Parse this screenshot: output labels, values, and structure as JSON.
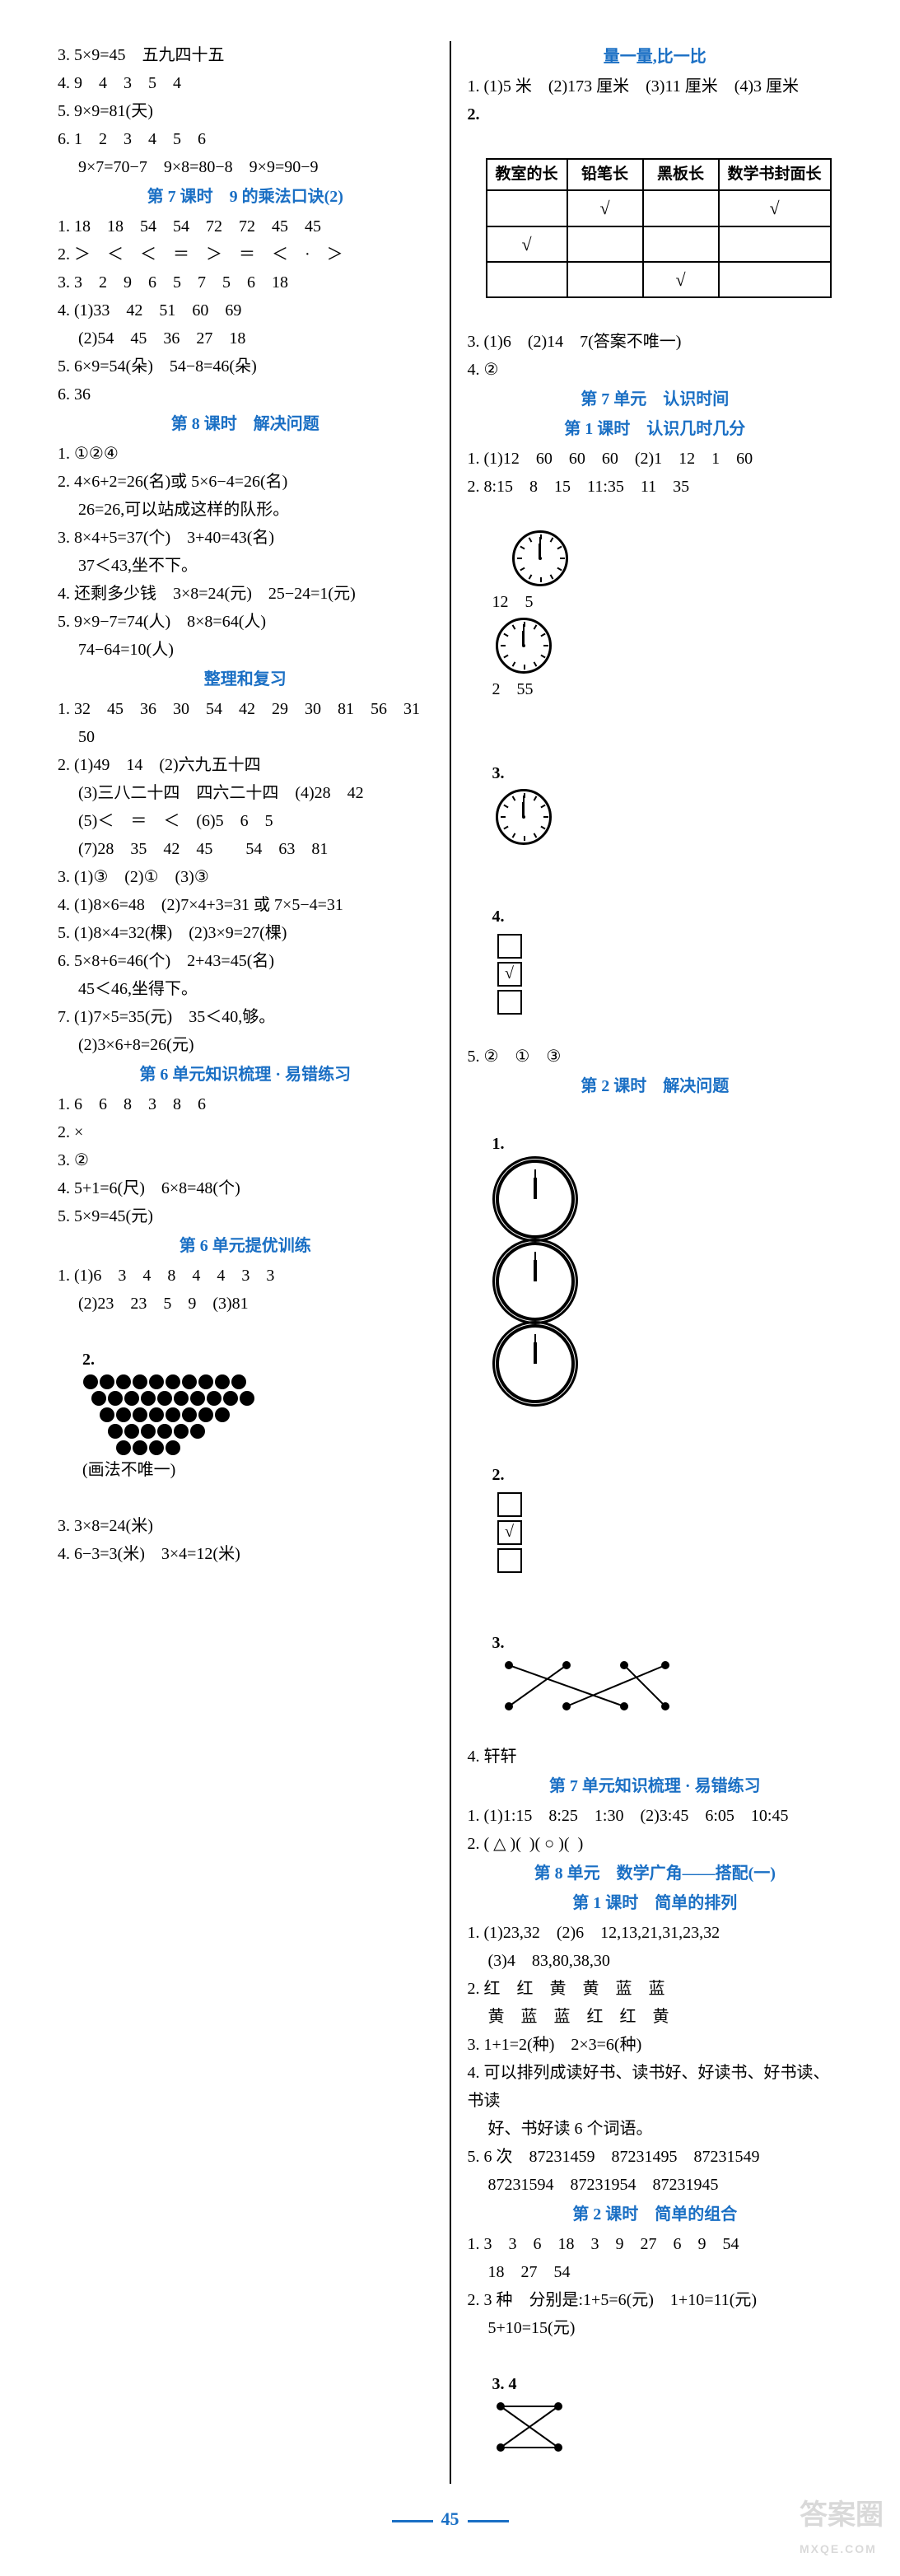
{
  "left": {
    "l3": "3. 5×9=45　五九四十五",
    "l4": "4. 9　4　3　5　4",
    "l5": "5. 9×9=81(天)",
    "l6a": "6. 1　2　3　4　5　6",
    "l6b": "　 9×7=70−7　9×8=80−8　9×9=90−9",
    "h7": "第 7 课时　9 的乘法口诀(2)",
    "s7_1": "1. 18　18　54　54　72　72　45　45",
    "s7_2": "2. ＞　＜　＜　＝　＞　＝　＜　·　＞",
    "s7_3": "3. 3　2　9　6　5　7　5　6　18",
    "s7_4a": "4. (1)33　42　51　60　69",
    "s7_4b": "　 (2)54　45　36　27　18",
    "s7_5": "5. 6×9=54(朵)　54−8=46(朵)",
    "s7_6": "6. 36",
    "h8": "第 8 课时　解决问题",
    "s8_1": "1. ①②④",
    "s8_2a": "2. 4×6+2=26(名)或 5×6−4=26(名)",
    "s8_2b": "　 26=26,可以站成这样的队形。",
    "s8_3a": "3. 8×4+5=37(个)　3+40=43(名)",
    "s8_3b": "　 37＜43,坐不下。",
    "s8_4": "4. 还剩多少钱　3×8=24(元)　25−24=1(元)",
    "s8_5a": "5. 9×9−7=74(人)　8×8=64(人)",
    "s8_5b": "　 74−64=10(人)",
    "hZL": "整理和复习",
    "z1a": "1. 32　45　36　30　54　42　29　30　81　56　31",
    "z1b": "　 50",
    "z2a": "2. (1)49　14　(2)六九五十四",
    "z2b": "　 (3)三八二十四　四六二十四　(4)28　42",
    "z2c": "　 (5)＜　＝　＜　(6)5　6　5",
    "z2d": "　 (7)28　35　42　45　　54　63　81",
    "z3": "3. (1)③　(2)①　(3)③",
    "z4": "4. (1)8×6=48　(2)7×4+3=31 或 7×5−4=31",
    "z5": "5. (1)8×4=32(棵)　(2)3×9=27(棵)",
    "z6a": "6. 5×8+6=46(个)　2+43=45(名)",
    "z6b": "　 45＜46,坐得下。",
    "z7a": "7. (1)7×5=35(元)　35＜40,够。",
    "z7b": "　 (2)3×6+8=26(元)",
    "h6e": "第 6 单元知识梳理 · 易错练习",
    "e1": "1. 6　6　8　3　8　6",
    "e2": "2. ×",
    "e3": "3. ②",
    "e4": "4. 5+1=6(尺)　6×8=48(个)",
    "e5": "5. 5×9=45(元)",
    "h6t": "第 6 单元提优训练",
    "t1a": "1. (1)6　3　4　8　4　4　3　3",
    "t1b": "　 (2)23　23　5　9　(3)81",
    "t2suffix": "(画法不唯一)",
    "t3": "3. 3×8=24(米)",
    "t4": "4. 6−3=3(米)　3×4=12(米)",
    "dots": [
      10,
      10,
      8,
      6,
      4
    ]
  },
  "right": {
    "hL": "量一量,比一比",
    "r1": "1. (1)5 米　(2)173 厘米　(3)11 厘米　(4)3 厘米",
    "table": {
      "headers": [
        "教室的长",
        "铅笔长",
        "黑板长",
        "数学书封面长"
      ],
      "rows": [
        [
          "",
          "√",
          "",
          "√"
        ],
        [
          "√",
          "",
          "",
          ""
        ],
        [
          "",
          "",
          "√",
          ""
        ]
      ]
    },
    "r3": "3. (1)6　(2)14　7(答案不唯一)",
    "r4": "4. ②",
    "h7u": "第 7 单元　认识时间",
    "h7u1": "第 1 课时　认识几时几分",
    "u1": "1. (1)12　60　60　60　(2)1　12　1　60",
    "u2": "2. 8:15　8　15　11:35　11　35",
    "c12": "12　5",
    "c255": "2　55",
    "u3label": "3.",
    "u4label": "4.",
    "u5": "5. ②　①　③",
    "h7u2": "第 2 课时　解决问题",
    "w1label": "1.",
    "w2label": "2.",
    "w3label": "3.",
    "w4": "4. 轩轩",
    "h7e": "第 7 单元知识梳理 · 易错练习",
    "e1r": "1. (1)1:15　8:25　1:30　(2)3:45　6:05　10:45",
    "e2r": "2. ( △ )(  )( ○ )(  )",
    "h8u": "第 8 单元　数学广角——搭配(一)",
    "h8u1": "第 1 课时　简单的排列",
    "p1a": "1. (1)23,32　(2)6　12,13,21,31,23,32",
    "p1b": "　 (3)4　83,80,38,30",
    "p2a": "2. 红　红　黄　黄　蓝　蓝",
    "p2b": "　 黄　蓝　蓝　红　红　黄",
    "p3": "3. 1+1=2(种)　2×3=6(种)",
    "p4a": "4. 可以排列成读好书、读书好、好读书、好书读、书读",
    "p4b": "　 好、书好读 6 个词语。",
    "p5a": "5. 6 次　87231459　87231495　87231549",
    "p5b": "　 87231594　87231954　87231945",
    "h8u2": "第 2 课时　简单的组合",
    "c1a": "1. 3　3　6　18　3　9　27　6　9　54",
    "c1b": "　 18　27　54",
    "c2a": "2. 3 种　分别是:1+5=6(元)　1+10=11(元)",
    "c2b": "　 5+10=15(元)",
    "c3": "3. 4"
  },
  "pagenum": "45",
  "watermark": "答案圈",
  "watermark_url": "MXQE.COM"
}
